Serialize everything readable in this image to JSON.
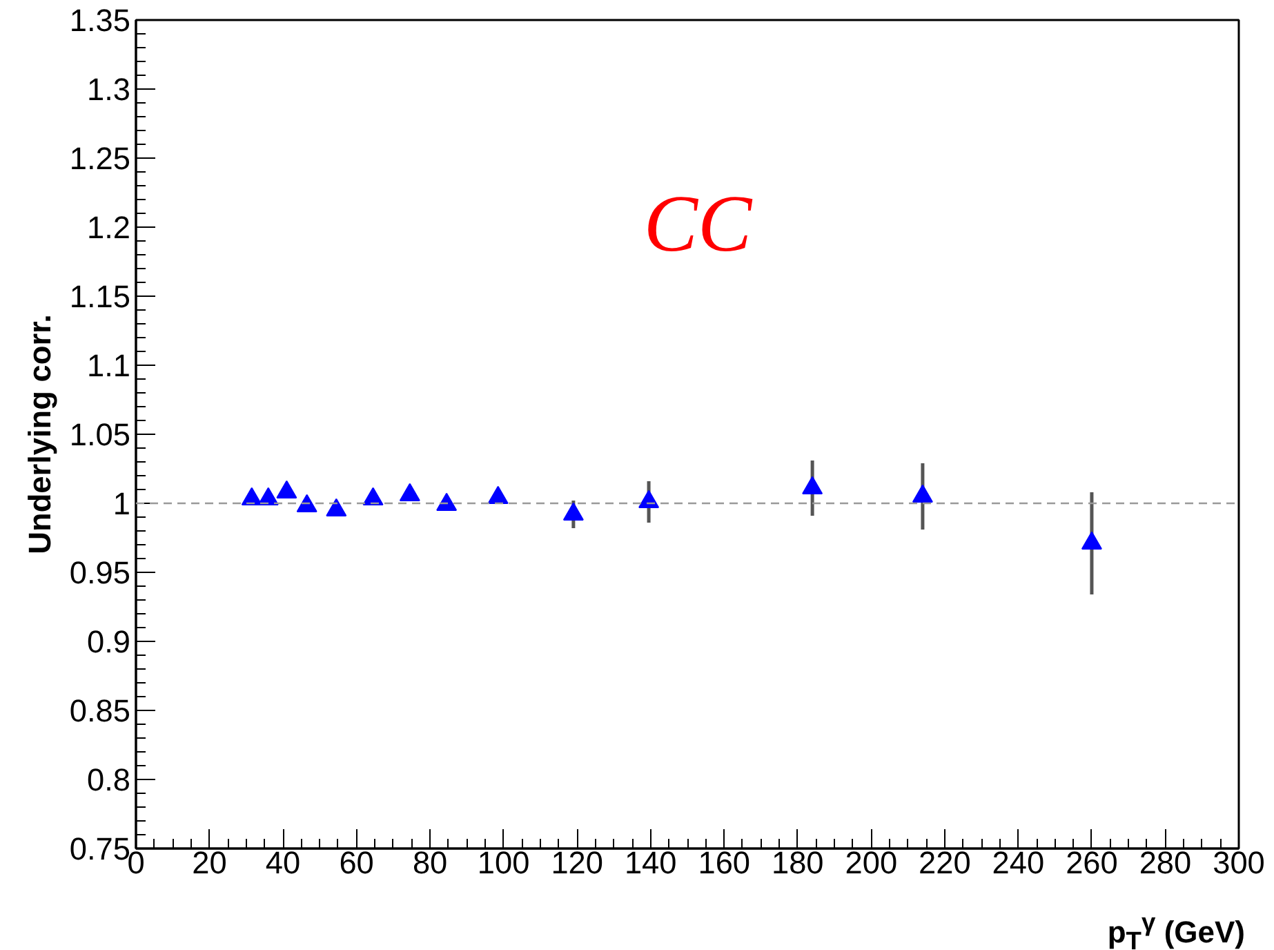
{
  "chart_data": {
    "type": "scatter",
    "xlabel": "p$_{T}$$^{γ}$ (GeV)",
    "ylabel": "Underlying corr.",
    "annotations": [
      "CC"
    ],
    "x": [
      31.5,
      36,
      41,
      46.5,
      54.5,
      64.5,
      74.5,
      84.5,
      98.5,
      119,
      139.5,
      184,
      214,
      260
    ],
    "series": [
      {
        "color": "#0000ff",
        "values": [
          1.003,
          1.003,
          1.008,
          0.998,
          0.995,
          1.003,
          1.006,
          0.999,
          1.004,
          0.992,
          1.001,
          1.011,
          1.005,
          0.971
        ],
        "errors": [
          null,
          null,
          null,
          null,
          null,
          null,
          null,
          null,
          null,
          0.01,
          0.015,
          0.02,
          0.024,
          0.037
        ]
      }
    ],
    "marker": "triangle",
    "grid": false,
    "xlim": [
      0,
      300
    ],
    "xticks": [
      0,
      20,
      40,
      60,
      80,
      100,
      120,
      140,
      160,
      180,
      200,
      220,
      240,
      260,
      280,
      300
    ],
    "ylim": [
      0.75,
      1.35
    ],
    "yticks": [
      0.75,
      0.8,
      0.85,
      0.9,
      0.95,
      1,
      1.05,
      1.1,
      1.15,
      1.2,
      1.25,
      1.3,
      1.35
    ],
    "ref_lines": [
      {
        "axis": "y",
        "value": 1,
        "color": "#999999",
        "line_style": "dashed"
      }
    ]
  }
}
